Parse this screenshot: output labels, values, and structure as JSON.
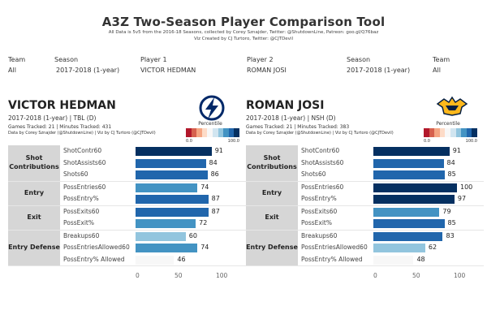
{
  "header": {
    "title": "A3Z Two-Season Player Comparison Tool",
    "line1": "All Data is 5v5 from the 2016-18 Seasons, collected by Corey Sznajder, Twitter: @ShutdownLine, Patreon: goo.gl/Q76baz",
    "line2": "Viz Created by CJ Turtoro, Twitter: @CJTDevil"
  },
  "filters": {
    "team1_label": "Team",
    "team1_value": "All",
    "season1_label": "Season",
    "season1_value": "2017-2018 (1-year)",
    "player1_label": "Player 1",
    "player1_value": "VICTOR HEDMAN",
    "player2_label": "Player 2",
    "player2_value": "ROMAN JOSI",
    "season2_label": "Season",
    "season2_value": "2017-2018 (1-year)",
    "team2_label": "Team",
    "team2_value": "All"
  },
  "colors": {
    "scale": [
      "#b2182b",
      "#d6604d",
      "#f4a582",
      "#fddbc7",
      "#f7f7f7",
      "#d1e5f0",
      "#92c5de",
      "#4393c3",
      "#2166ac",
      "#053061"
    ],
    "group_bg": "#d6d6d6"
  },
  "legend": {
    "title": "Percentile",
    "min": "0.0",
    "max": "100.0"
  },
  "players": [
    {
      "name": "VICTOR HEDMAN",
      "season_team": "2017-2018 (1-year) | TBL (D)",
      "tracked": "Games Tracked: 21 | Minutes Tracked: 431",
      "credit": "Data by Corey Sznajder (@ShutdownLine) | Viz by CJ Turtoro (@CJTDevil)",
      "logo": "lightning-logo",
      "groups": [
        {
          "label": "Shot Contributions",
          "rows": [
            {
              "name": "ShotContr60",
              "value": 91
            },
            {
              "name": "ShotAssists60",
              "value": 84
            },
            {
              "name": "Shots60",
              "value": 86
            }
          ]
        },
        {
          "label": "Entry",
          "rows": [
            {
              "name": "PossEntries60",
              "value": 74
            },
            {
              "name": "PossEntry%",
              "value": 87
            }
          ]
        },
        {
          "label": "Exit",
          "rows": [
            {
              "name": "PossExits60",
              "value": 87
            },
            {
              "name": "PossExit%",
              "value": 72
            }
          ]
        },
        {
          "label": "Entry Defense",
          "rows": [
            {
              "name": "Breakups60",
              "value": 60
            },
            {
              "name": "PossEntriesAllowed60",
              "value": 74
            },
            {
              "name": "PossEntry% Allowed",
              "value": 46
            }
          ]
        }
      ]
    },
    {
      "name": "ROMAN JOSI",
      "season_team": "2017-2018 (1-year) | NSH (D)",
      "tracked": "Games Tracked: 21 | Minutes Tracked: 383",
      "credit": "Data by Corey Sznajder (@ShutdownLine) | Viz by CJ Turtoro (@CJTDevil)",
      "logo": "predators-logo",
      "groups": [
        {
          "label": "Shot Contributions",
          "rows": [
            {
              "name": "ShotContr60",
              "value": 91
            },
            {
              "name": "ShotAssists60",
              "value": 84
            },
            {
              "name": "Shots60",
              "value": 85
            }
          ]
        },
        {
          "label": "Entry",
          "rows": [
            {
              "name": "PossEntries60",
              "value": 100
            },
            {
              "name": "PossEntry%",
              "value": 97
            }
          ]
        },
        {
          "label": "Exit",
          "rows": [
            {
              "name": "PossExits60",
              "value": 79
            },
            {
              "name": "PossExit%",
              "value": 85
            }
          ]
        },
        {
          "label": "Entry Defense",
          "rows": [
            {
              "name": "Breakups60",
              "value": 83
            },
            {
              "name": "PossEntriesAllowed60",
              "value": 62
            },
            {
              "name": "PossEntry% Allowed",
              "value": 48
            }
          ]
        }
      ]
    }
  ],
  "axis": {
    "ticks": [
      "0",
      "50",
      "100"
    ]
  }
}
